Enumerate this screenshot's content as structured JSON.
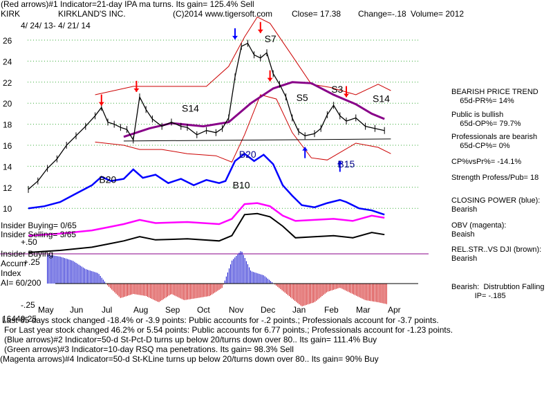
{
  "header": {
    "line1": "(Red arrows)#1 Indicator=21-day IPA ma turns. Its gain= 125.4% Sell",
    "ticker": "KIRK",
    "company": "KIRKLAND'S INC.",
    "copyright": "(C)2014 www.tigersoft.com",
    "close": "Close=  17.38",
    "change": "Change=-.18",
    "volume": "Volume= 2012",
    "date_range": "4/ 24/ 13-  4/ 21/ 14"
  },
  "chart_data": {
    "type": "line",
    "title": "KIRKLAND'S INC.",
    "months": [
      "May",
      "Jun",
      "Jul",
      "Aug",
      "Sep",
      "Oct",
      "Nov",
      "Dec",
      "Jan",
      "Feb",
      "Mar",
      "Apr"
    ],
    "price_axis": {
      "ticks": [
        26,
        24,
        22,
        20,
        18,
        16,
        14,
        12,
        10
      ],
      "ylim": [
        9,
        28
      ]
    },
    "price_points": [
      [
        0,
        11.8
      ],
      [
        0.3,
        12.6
      ],
      [
        0.6,
        13.8
      ],
      [
        0.9,
        14.7
      ],
      [
        1.2,
        16.0
      ],
      [
        1.5,
        16.9
      ],
      [
        1.8,
        17.8
      ],
      [
        2.1,
        18.8
      ],
      [
        2.3,
        19.6
      ],
      [
        2.5,
        18.2
      ],
      [
        2.7,
        18.0
      ],
      [
        2.9,
        17.7
      ],
      [
        3.1,
        17.5
      ],
      [
        3.3,
        16.5
      ],
      [
        3.5,
        20.6
      ],
      [
        3.7,
        19.4
      ],
      [
        3.9,
        18.5
      ],
      [
        4.2,
        17.8
      ],
      [
        4.5,
        18.2
      ],
      [
        4.8,
        17.8
      ],
      [
        5.0,
        17.7
      ],
      [
        5.3,
        17.0
      ],
      [
        5.6,
        17.4
      ],
      [
        5.9,
        17.2
      ],
      [
        6.1,
        17.6
      ],
      [
        6.3,
        18.6
      ],
      [
        6.5,
        22.5
      ],
      [
        6.7,
        25.4
      ],
      [
        6.9,
        25.7
      ],
      [
        7.1,
        24.6
      ],
      [
        7.3,
        24.3
      ],
      [
        7.5,
        24.8
      ],
      [
        7.7,
        22.8
      ],
      [
        7.9,
        21.8
      ],
      [
        8.1,
        20.6
      ],
      [
        8.3,
        18.6
      ],
      [
        8.5,
        17.3
      ],
      [
        8.7,
        16.9
      ],
      [
        9.0,
        17.1
      ],
      [
        9.2,
        17.6
      ],
      [
        9.4,
        18.9
      ],
      [
        9.6,
        19.8
      ],
      [
        9.8,
        18.8
      ],
      [
        10.0,
        18.3
      ],
      [
        10.3,
        18.6
      ],
      [
        10.6,
        17.8
      ],
      [
        10.9,
        17.6
      ],
      [
        11.2,
        17.4
      ]
    ],
    "trend_line": [
      [
        3.0,
        16.4
      ],
      [
        11.4,
        16.6
      ]
    ],
    "bollinger_upper": [
      [
        2.1,
        20.8
      ],
      [
        3.3,
        21.6
      ],
      [
        4.5,
        21.6
      ],
      [
        5.6,
        21.6
      ],
      [
        6.3,
        23.5
      ],
      [
        6.8,
        26.3
      ],
      [
        7.2,
        28.2
      ],
      [
        7.6,
        27.6
      ],
      [
        8.3,
        24.5
      ],
      [
        8.9,
        21.8
      ],
      [
        9.5,
        21.5
      ],
      [
        10.3,
        20.8
      ],
      [
        11.0,
        21.8
      ],
      [
        11.4,
        21.2
      ]
    ],
    "bollinger_lower": [
      [
        2.1,
        16.3
      ],
      [
        3.0,
        16.0
      ],
      [
        3.5,
        15.6
      ],
      [
        4.2,
        15.6
      ],
      [
        5.0,
        15.2
      ],
      [
        5.9,
        15.0
      ],
      [
        6.4,
        14.4
      ],
      [
        6.8,
        17.0
      ],
      [
        7.3,
        20.8
      ],
      [
        7.8,
        20.4
      ],
      [
        8.3,
        17.2
      ],
      [
        8.9,
        14.8
      ],
      [
        9.4,
        14.6
      ],
      [
        10.3,
        16.2
      ],
      [
        11.0,
        15.8
      ],
      [
        11.4,
        15.2
      ]
    ],
    "moving_average": [
      [
        3.0,
        16.8
      ],
      [
        3.8,
        17.6
      ],
      [
        4.5,
        18.1
      ],
      [
        5.5,
        17.8
      ],
      [
        6.3,
        18.2
      ],
      [
        7.0,
        20.0
      ],
      [
        7.7,
        21.4
      ],
      [
        8.3,
        22.0
      ],
      [
        8.9,
        21.9
      ],
      [
        9.6,
        20.8
      ],
      [
        10.3,
        19.9
      ],
      [
        10.8,
        19.0
      ],
      [
        11.2,
        18.5
      ]
    ],
    "closing_power": [
      [
        0,
        10.0
      ],
      [
        0.5,
        10.2
      ],
      [
        1.0,
        10.6
      ],
      [
        1.5,
        11.4
      ],
      [
        2.0,
        12.2
      ],
      [
        2.3,
        13.0
      ],
      [
        2.6,
        12.6
      ],
      [
        3.0,
        12.8
      ],
      [
        3.3,
        13.7
      ],
      [
        3.6,
        12.9
      ],
      [
        4.0,
        13.2
      ],
      [
        4.4,
        12.4
      ],
      [
        4.8,
        12.8
      ],
      [
        5.2,
        12.2
      ],
      [
        5.6,
        12.7
      ],
      [
        6.0,
        12.4
      ],
      [
        6.2,
        12.6
      ],
      [
        6.5,
        14.5
      ],
      [
        6.8,
        15.2
      ],
      [
        7.1,
        14.5
      ],
      [
        7.4,
        15.1
      ],
      [
        7.7,
        14.2
      ],
      [
        8.0,
        12.2
      ],
      [
        8.3,
        11.2
      ],
      [
        8.6,
        10.3
      ],
      [
        9.0,
        10.1
      ],
      [
        9.4,
        10.5
      ],
      [
        9.8,
        10.8
      ],
      [
        10.0,
        10.6
      ],
      [
        10.4,
        10.0
      ],
      [
        10.8,
        9.8
      ],
      [
        11.2,
        9.4
      ]
    ],
    "obv": [
      [
        0,
        7.4
      ],
      [
        1.0,
        7.6
      ],
      [
        2.0,
        7.9
      ],
      [
        2.5,
        8.2
      ],
      [
        3.0,
        8.5
      ],
      [
        3.5,
        8.9
      ],
      [
        4.0,
        8.6
      ],
      [
        5.0,
        8.7
      ],
      [
        6.0,
        8.5
      ],
      [
        6.4,
        9.0
      ],
      [
        6.8,
        10.4
      ],
      [
        7.2,
        10.5
      ],
      [
        7.6,
        10.2
      ],
      [
        8.0,
        9.3
      ],
      [
        8.4,
        8.8
      ],
      [
        9.0,
        8.9
      ],
      [
        9.6,
        9.0
      ],
      [
        10.2,
        8.8
      ],
      [
        10.8,
        9.3
      ],
      [
        11.2,
        9.1
      ]
    ],
    "accum_index": [
      [
        0.6,
        0.7
      ],
      [
        1.0,
        0.65
      ],
      [
        1.4,
        0.55
      ],
      [
        1.8,
        0.35
      ],
      [
        2.2,
        0.25
      ],
      [
        2.5,
        -0.05
      ],
      [
        2.9,
        -0.35
      ],
      [
        3.3,
        -0.25
      ],
      [
        3.7,
        -0.3
      ],
      [
        4.1,
        -0.45
      ],
      [
        4.5,
        -0.25
      ],
      [
        4.9,
        -0.4
      ],
      [
        5.3,
        -0.35
      ],
      [
        5.7,
        -0.3
      ],
      [
        6.1,
        -0.1
      ],
      [
        6.4,
        0.55
      ],
      [
        6.7,
        0.8
      ],
      [
        7.0,
        0.3
      ],
      [
        7.4,
        0.2
      ],
      [
        7.8,
        -0.05
      ],
      [
        8.2,
        -0.3
      ],
      [
        8.6,
        -0.55
      ],
      [
        9.0,
        -0.45
      ],
      [
        9.4,
        -0.2
      ],
      [
        9.8,
        -0.1
      ],
      [
        10.2,
        -0.25
      ],
      [
        10.6,
        -0.4
      ],
      [
        11.0,
        -0.45
      ],
      [
        11.3,
        -0.5
      ]
    ],
    "red_arrows": [
      [
        2.3,
        20.3
      ],
      [
        3.4,
        21.6
      ],
      [
        7.3,
        27.2
      ],
      [
        7.6,
        22.6
      ],
      [
        10.0,
        21.1
      ]
    ],
    "blue_arrows": [
      [
        6.5,
        26.6
      ],
      [
        8.7,
        15.3
      ],
      [
        9.8,
        14.0
      ]
    ],
    "signals": [
      {
        "label": "S14",
        "m": 5.0,
        "v": 19.2,
        "color": "#000000"
      },
      {
        "label": "S7",
        "m": 7.6,
        "v": 25.8,
        "color": "#000000"
      },
      {
        "label": "S5",
        "m": 8.6,
        "v": 20.2,
        "color": "#000000"
      },
      {
        "label": "S3",
        "m": 9.7,
        "v": 21.0,
        "color": "#000000"
      },
      {
        "label": "S14",
        "m": 11.0,
        "v": 20.1,
        "color": "#000000"
      },
      {
        "label": "B20",
        "m": 2.4,
        "v": 12.4,
        "color": "#000000"
      },
      {
        "label": "B20",
        "m": 6.8,
        "v": 14.8,
        "color": "#000088"
      },
      {
        "label": "B10",
        "m": 6.6,
        "v": 11.9,
        "color": "#000000"
      },
      {
        "label": "B15",
        "m": 9.9,
        "v": 13.9,
        "color": "#000088"
      }
    ]
  },
  "indicator_labels": {
    "insider_buying": "Insider Buying= 0/65",
    "insider_selling": "Insider Selling= 3/65",
    "plus50": "+.50",
    "insider_buying2": "Insider Buying",
    "accum": "Accum",
    "index": "Index",
    "ai": "AI= 60/200",
    "plus25": "+.25",
    "minus25": "-.25"
  },
  "right_panel": [
    {
      "id": "trend",
      "lines": [
        "BEARISH PRICE TREND",
        "    65d-PR%= 14%"
      ]
    },
    {
      "id": "public",
      "lines": [
        "Public is bullish",
        "    65d-OP%= 79.7%"
      ]
    },
    {
      "id": "prof",
      "lines": [
        "Professionals are bearish",
        "    65d-CP%= 0%"
      ]
    },
    {
      "id": "cpvspr",
      "lines": [
        "CP%vsPr%= -14.1%"
      ]
    },
    {
      "id": "strength",
      "lines": [
        "Strength Profess/Pub= 18"
      ]
    },
    {
      "id": "closing",
      "lines": [
        "CLOSING POWER (blue):",
        "Bearish"
      ]
    },
    {
      "id": "obv",
      "lines": [
        "OBV (magenta):",
        "Beaish"
      ]
    },
    {
      "id": "relstr",
      "lines": [
        "REL.STR..VS DJI (brown):",
        "Bearish"
      ]
    },
    {
      "id": "bearish",
      "lines": [
        "Bearish:  Distrubtion Falling",
        "           IP= -.185"
      ]
    }
  ],
  "footer": [
    "Last 65 days stock changed -18.4% or -3.9 points:  Public accounts for -.2 points.;  Professionals account for -3.7 points.",
    "For Last year stock changed  46.2% or  5.54 points:  Public accounts for  6.77 points.;  Professionals account for -1.23 points.",
    "(Blue arrows)#2 Indicator=50-d St-Pct-D turns up below 20/turns down over 80.. Its gain= 111.4% Buy",
    "(Green arrows)#3 Indicator=10-day RSQ ma penetrations. Its gain= 98.3% Sell",
    "(Magenta arrows)#4 Indicator=50-d St-KLine turns up below 20/turns down over 80.. Its gain= 90% Buy"
  ],
  "footer_overlay": "16449.25",
  "colors": {
    "price": "#000000",
    "bands": "#cc0000",
    "ma": "#880088",
    "closing_power": "#0000ff",
    "obv": "#ff00ff",
    "relstr": "#000000",
    "accum_pos": "#0000cc",
    "accum_neg": "#cc0000",
    "arrow_red": "#ff0000",
    "arrow_blue": "#0000ff",
    "arrow_magenta": "#ff00ff",
    "grid": "#33aa33"
  }
}
